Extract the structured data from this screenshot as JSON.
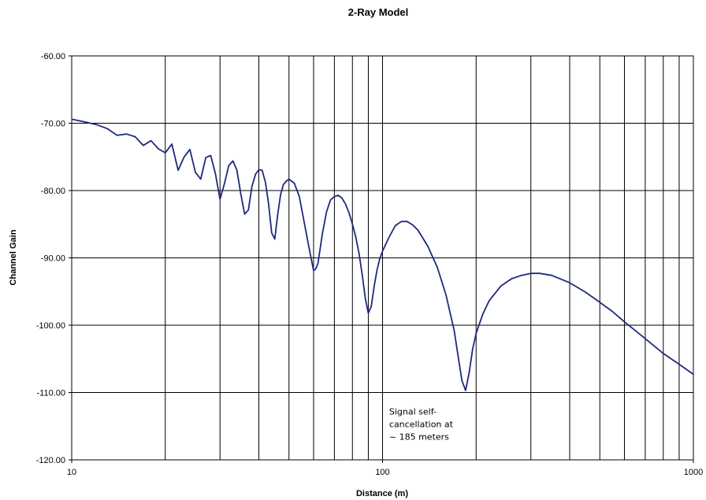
{
  "chart_data": {
    "type": "line",
    "title": "2-Ray Model",
    "xlabel": "Distance (m)",
    "ylabel": "Channel Gain",
    "xscale": "log",
    "xlim": [
      10,
      1000
    ],
    "ylim": [
      -120,
      -60
    ],
    "grid": true,
    "line_color": "#1f2a7a",
    "x_tick_labels": [
      {
        "value": 10,
        "label": "10"
      },
      {
        "value": 100,
        "label": "100"
      },
      {
        "value": 1000,
        "label": "1000"
      }
    ],
    "y_tick_labels": [
      {
        "value": -60,
        "label": "-60.00"
      },
      {
        "value": -70,
        "label": "-70.00"
      },
      {
        "value": -80,
        "label": "-80.00"
      },
      {
        "value": -90,
        "label": "-90.00"
      },
      {
        "value": -100,
        "label": "-100.00"
      },
      {
        "value": -110,
        "label": "-110.00"
      },
      {
        "value": -120,
        "label": "-120.00"
      }
    ],
    "annotation": {
      "lines": [
        "Signal self-",
        "cancellation at",
        "~ 185 meters"
      ],
      "x": 185,
      "y": -111.5
    },
    "series": [
      {
        "x": [
          10,
          11,
          12,
          13,
          14,
          15,
          16,
          17,
          18,
          19,
          20,
          21,
          22,
          23,
          24,
          25,
          26,
          27,
          28,
          29,
          30,
          31,
          32,
          33,
          34,
          35,
          36,
          37,
          38,
          39,
          40,
          41,
          42,
          43,
          44,
          45,
          46,
          47,
          48,
          49,
          50,
          52,
          54,
          56,
          58,
          60,
          61,
          62,
          64,
          66,
          68,
          70,
          72,
          74,
          76,
          78,
          80,
          82,
          84,
          86,
          88,
          90,
          92,
          94,
          96,
          98,
          100,
          105,
          110,
          115,
          120,
          125,
          130,
          140,
          150,
          160,
          170,
          175,
          180,
          185,
          190,
          195,
          200,
          210,
          220,
          240,
          260,
          280,
          300,
          320,
          350,
          400,
          450,
          500,
          550,
          600,
          700,
          800,
          900,
          1000
        ],
        "y": [
          -69.4,
          -69.8,
          -70.2,
          -70.8,
          -71.8,
          -71.6,
          -72.0,
          -73.3,
          -72.6,
          -73.8,
          -74.4,
          -73.1,
          -77.0,
          -75.0,
          -73.9,
          -77.3,
          -78.3,
          -75.1,
          -74.8,
          -77.5,
          -81.3,
          -79.0,
          -76.3,
          -75.6,
          -77.0,
          -80.5,
          -83.5,
          -82.9,
          -79.4,
          -77.6,
          -76.9,
          -77.0,
          -78.8,
          -82.0,
          -86.3,
          -87.2,
          -83.5,
          -80.6,
          -79.1,
          -78.6,
          -78.3,
          -78.9,
          -80.9,
          -84.8,
          -88.5,
          -91.9,
          -91.6,
          -90.8,
          -86.5,
          -83.2,
          -81.4,
          -80.9,
          -80.7,
          -81.1,
          -82.0,
          -83.3,
          -85.0,
          -86.9,
          -89.3,
          -92.5,
          -96.0,
          -98.2,
          -97.2,
          -94.2,
          -91.8,
          -90.1,
          -89.0,
          -86.9,
          -85.2,
          -84.6,
          -84.6,
          -85.1,
          -85.9,
          -88.3,
          -91.4,
          -95.5,
          -100.8,
          -104.6,
          -108.2,
          -109.7,
          -107.0,
          -103.5,
          -101.2,
          -98.4,
          -96.4,
          -94.2,
          -93.1,
          -92.6,
          -92.3,
          -92.3,
          -92.6,
          -93.7,
          -95.1,
          -96.6,
          -98.0,
          -99.5,
          -102.0,
          -104.2,
          -105.8,
          -107.3
        ]
      }
    ]
  }
}
